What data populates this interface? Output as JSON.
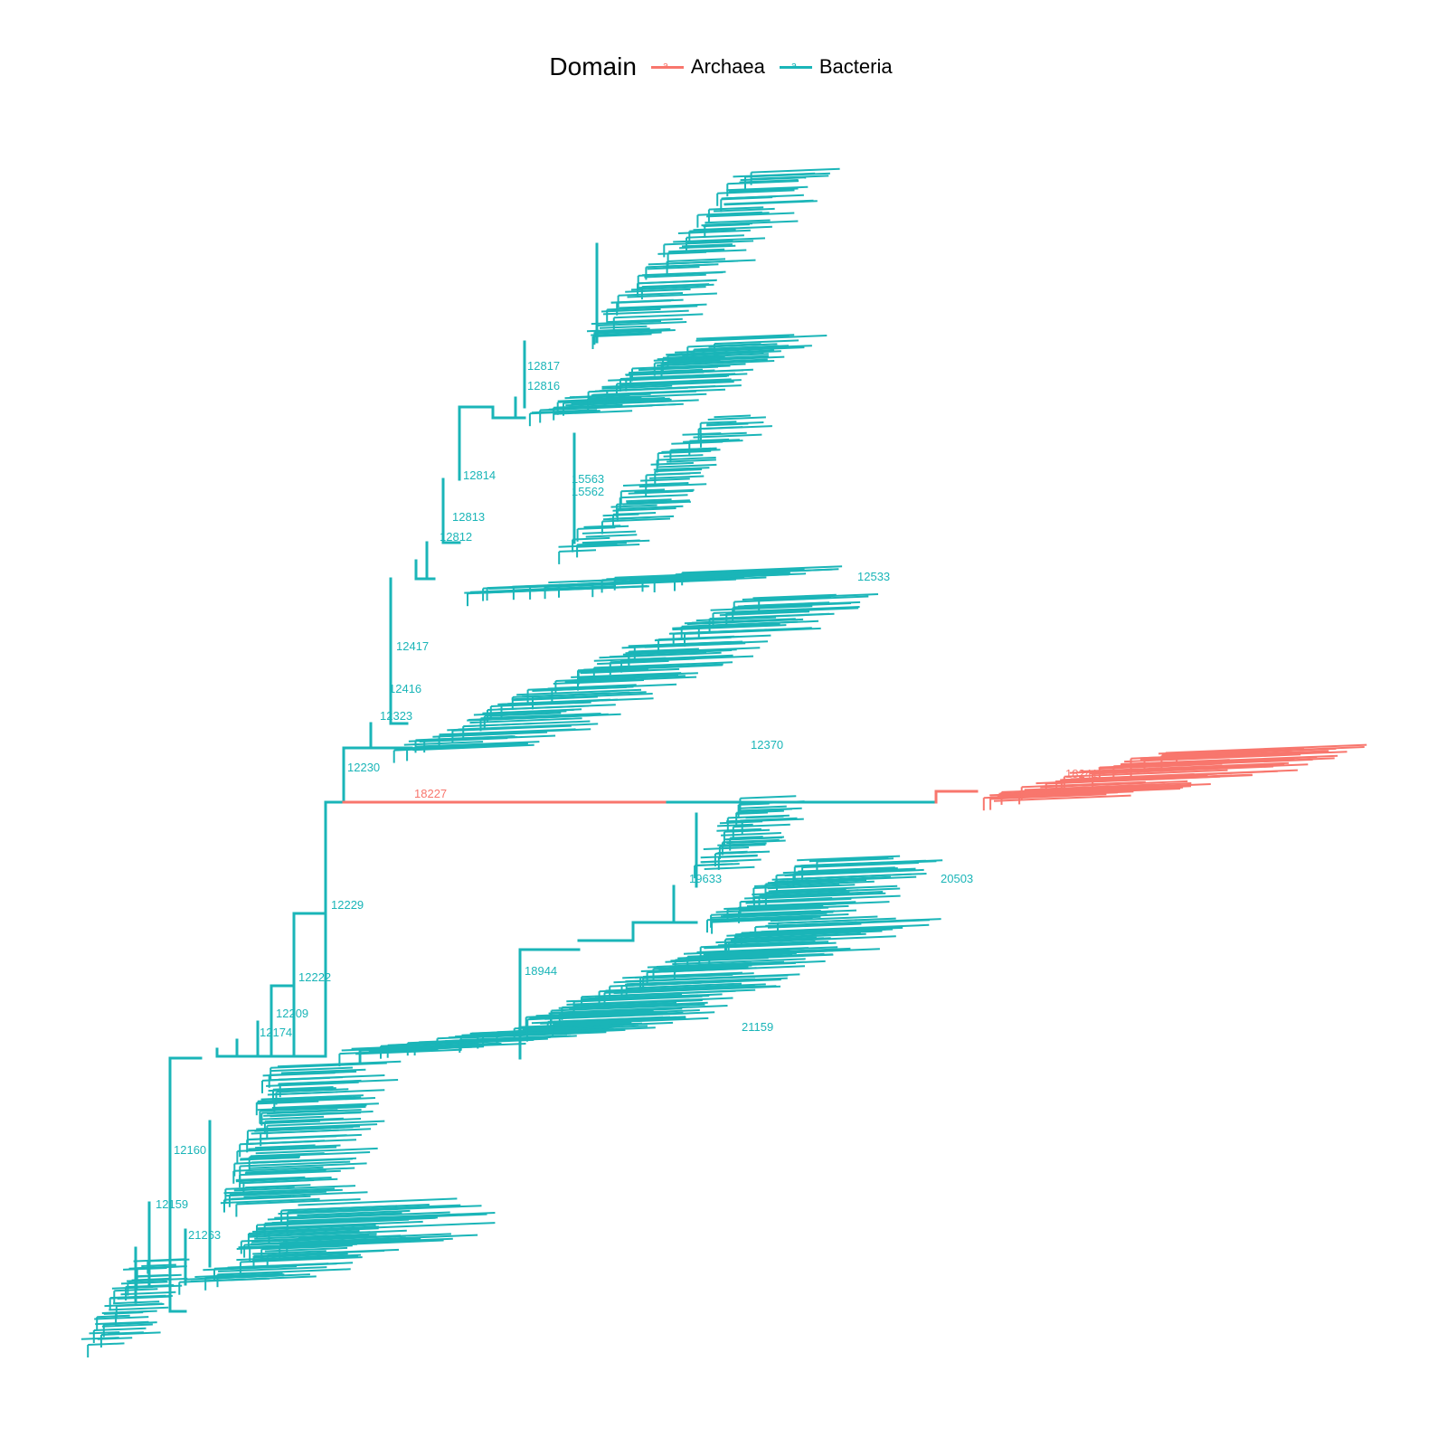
{
  "legend": {
    "title": "Domain",
    "items": [
      {
        "label": "Archaea",
        "color": "#F8766D",
        "glyph": "a"
      },
      {
        "label": "Bacteria",
        "color": "#1AB5B8",
        "glyph": "a"
      }
    ]
  },
  "colors": {
    "bacteria": "#1AB5B8",
    "archaea": "#F8766D"
  },
  "node_labels": [
    {
      "text": "12817",
      "domain": "bacteria"
    },
    {
      "text": "12816",
      "domain": "bacteria"
    },
    {
      "text": "12814",
      "domain": "bacteria"
    },
    {
      "text": "12813",
      "domain": "bacteria"
    },
    {
      "text": "12812",
      "domain": "bacteria"
    },
    {
      "text": "15563",
      "domain": "bacteria"
    },
    {
      "text": "15562",
      "domain": "bacteria"
    },
    {
      "text": "12417",
      "domain": "bacteria"
    },
    {
      "text": "12416",
      "domain": "bacteria"
    },
    {
      "text": "12323",
      "domain": "bacteria"
    },
    {
      "text": "12230",
      "domain": "bacteria"
    },
    {
      "text": "12229",
      "domain": "bacteria"
    },
    {
      "text": "12222",
      "domain": "bacteria"
    },
    {
      "text": "12209",
      "domain": "bacteria"
    },
    {
      "text": "12174",
      "domain": "bacteria"
    },
    {
      "text": "12160",
      "domain": "bacteria"
    },
    {
      "text": "12159",
      "domain": "bacteria"
    },
    {
      "text": "18944",
      "domain": "bacteria"
    },
    {
      "text": "19633",
      "domain": "bacteria"
    },
    {
      "text": "21263",
      "domain": "bacteria"
    },
    {
      "text": "18227",
      "domain": "archaea"
    },
    {
      "text": "18241",
      "domain": "archaea"
    },
    {
      "text": "12533",
      "domain": "bacteria"
    },
    {
      "text": "12370",
      "domain": "bacteria"
    },
    {
      "text": "20503",
      "domain": "bacteria"
    },
    {
      "text": "21159",
      "domain": "bacteria"
    }
  ]
}
